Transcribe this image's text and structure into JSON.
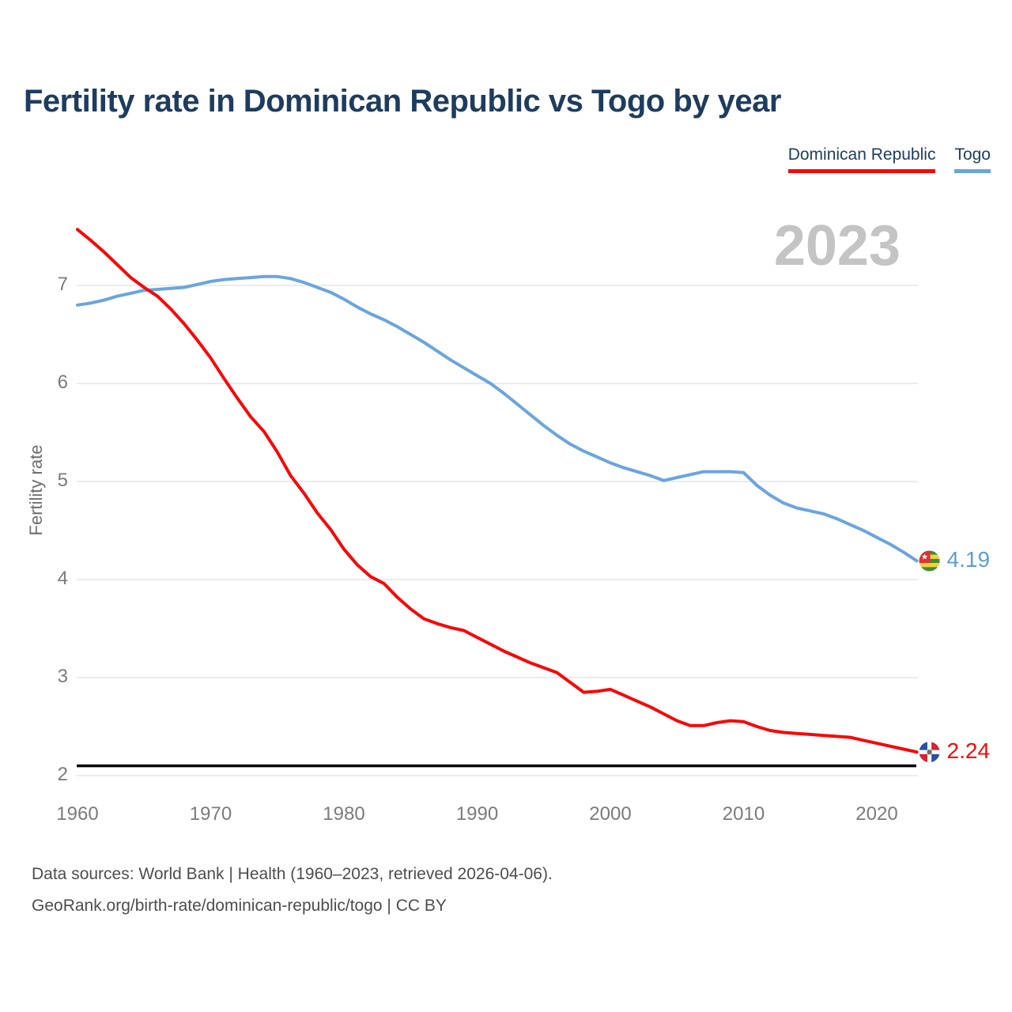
{
  "page": {
    "title": "Fertility rate in Dominican Republic vs Togo by year",
    "watermark_year": "2023",
    "footer_line1": "Data sources: World Bank | Health (1960–2023, retrieved 2026-04-06).",
    "footer_line2": "GeoRank.org/birth-rate/dominican-republic/togo | CC BY"
  },
  "legend": {
    "items": [
      {
        "label": "Dominican Republic",
        "color": "#f70808"
      },
      {
        "label": "Togo",
        "color": "#6aa5de"
      }
    ]
  },
  "chart_data": {
    "type": "line",
    "title": "Fertility rate in Dominican Republic vs Togo by year",
    "xlabel": "",
    "ylabel": "Fertility rate",
    "x_ticks": [
      1960,
      1970,
      1980,
      1990,
      2000,
      2010,
      2020
    ],
    "y_ticks": [
      2,
      3,
      4,
      5,
      6,
      7
    ],
    "xlim": [
      1960,
      2023
    ],
    "ylim": [
      1.9,
      7.7
    ],
    "grid": "horizontal",
    "legend_position": "top-right",
    "watermark": "2023",
    "reference_line": {
      "value": 2.1,
      "color": "#000000"
    },
    "years": [
      1960,
      1961,
      1962,
      1963,
      1964,
      1965,
      1966,
      1967,
      1968,
      1969,
      1970,
      1971,
      1972,
      1973,
      1974,
      1975,
      1976,
      1977,
      1978,
      1979,
      1980,
      1981,
      1982,
      1983,
      1984,
      1985,
      1986,
      1987,
      1988,
      1989,
      1990,
      1991,
      1992,
      1993,
      1994,
      1995,
      1996,
      1997,
      1998,
      1999,
      2000,
      2001,
      2002,
      2003,
      2004,
      2005,
      2006,
      2007,
      2008,
      2009,
      2010,
      2011,
      2012,
      2013,
      2014,
      2015,
      2016,
      2017,
      2018,
      2019,
      2020,
      2021,
      2022,
      2023
    ],
    "series": [
      {
        "name": "Dominican Republic",
        "color": "#f70808",
        "end_label": "2.24",
        "flag": "dominican-republic",
        "values": [
          7.57,
          7.46,
          7.34,
          7.21,
          7.08,
          6.98,
          6.89,
          6.76,
          6.61,
          6.44,
          6.26,
          6.05,
          5.85,
          5.66,
          5.51,
          5.3,
          5.06,
          4.88,
          4.68,
          4.51,
          4.31,
          4.15,
          4.03,
          3.96,
          3.82,
          3.7,
          3.6,
          3.55,
          3.51,
          3.48,
          3.41,
          3.34,
          3.27,
          3.21,
          3.15,
          3.1,
          3.05,
          2.95,
          2.85,
          2.86,
          2.88,
          2.82,
          2.76,
          2.7,
          2.63,
          2.56,
          2.51,
          2.51,
          2.54,
          2.56,
          2.55,
          2.5,
          2.46,
          2.44,
          2.43,
          2.42,
          2.41,
          2.4,
          2.39,
          2.36,
          2.33,
          2.3,
          2.27,
          2.24
        ]
      },
      {
        "name": "Togo",
        "color": "#6aa5de",
        "end_label": "4.19",
        "flag": "togo",
        "values": [
          6.8,
          6.82,
          6.85,
          6.89,
          6.92,
          6.95,
          6.96,
          6.97,
          6.98,
          7.01,
          7.04,
          7.06,
          7.07,
          7.08,
          7.09,
          7.09,
          7.07,
          7.03,
          6.98,
          6.93,
          6.86,
          6.78,
          6.71,
          6.65,
          6.58,
          6.5,
          6.42,
          6.33,
          6.24,
          6.16,
          6.08,
          6.0,
          5.9,
          5.79,
          5.68,
          5.57,
          5.47,
          5.38,
          5.31,
          5.25,
          5.19,
          5.14,
          5.1,
          5.06,
          5.01,
          5.04,
          5.07,
          5.1,
          5.1,
          5.1,
          5.09,
          4.96,
          4.86,
          4.78,
          4.73,
          4.7,
          4.67,
          4.62,
          4.56,
          4.5,
          4.43,
          4.36,
          4.28,
          4.19
        ]
      }
    ]
  }
}
